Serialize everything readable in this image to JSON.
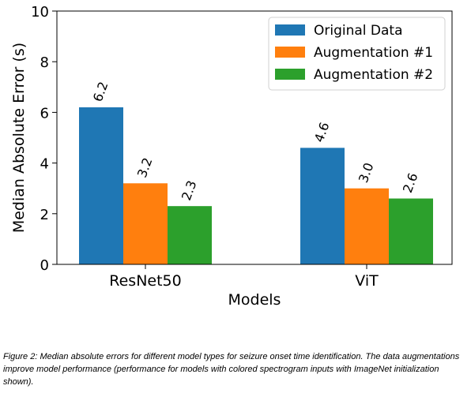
{
  "chart_data": {
    "type": "bar",
    "categories": [
      "ResNet50",
      "ViT"
    ],
    "series": [
      {
        "name": "Original Data",
        "values": [
          6.2,
          4.6
        ],
        "labels": [
          "6.2",
          "4.6"
        ],
        "color": "#1f77b4"
      },
      {
        "name": "Augmentation #1",
        "values": [
          3.2,
          3.0
        ],
        "labels": [
          "3.2",
          "3.0"
        ],
        "color": "#ff7f0e"
      },
      {
        "name": "Augmentation #2",
        "values": [
          2.3,
          2.6
        ],
        "labels": [
          "2.3",
          "2.6"
        ],
        "color": "#2ca02c"
      }
    ],
    "xlabel": "Models",
    "ylabel": "Median Absolute Error (s)",
    "ylim": [
      0,
      10
    ],
    "yticks": [
      0,
      2,
      4,
      6,
      8,
      10
    ],
    "grid": false,
    "legend_position": "top-right"
  },
  "caption": "Figure 2: Median absolute errors for different model types for seizure onset time identification. The data augmentations improve model performance (performance for models with colored spectrogram inputs with ImageNet initialization shown)."
}
